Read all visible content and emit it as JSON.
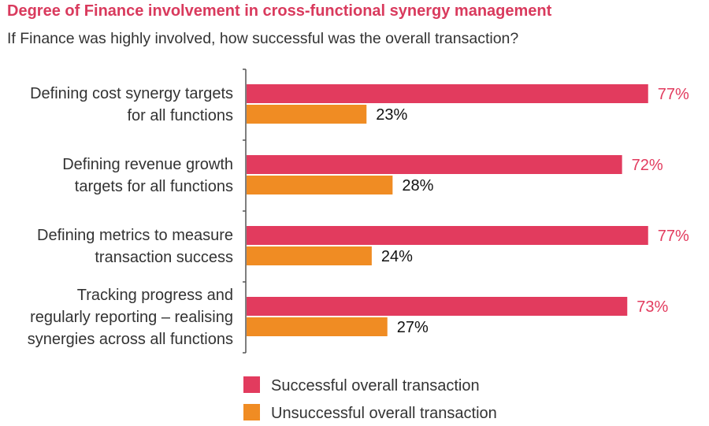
{
  "chart_data": {
    "type": "bar",
    "orientation": "horizontal",
    "title": "Degree of Finance involvement in cross-functional synergy management",
    "subtitle": "If Finance was highly involved, how successful was the overall transaction?",
    "categories": [
      [
        "Defining cost synergy targets",
        "for all functions"
      ],
      [
        "Defining revenue growth",
        "targets for all functions"
      ],
      [
        "Defining metrics to measure",
        "transaction success"
      ],
      [
        "Tracking progress and",
        "regularly reporting – realising",
        "synergies across all functions"
      ]
    ],
    "series": [
      {
        "name": "Successful overall transaction",
        "values": [
          77,
          72,
          77,
          73
        ],
        "labels": [
          "77%",
          "72%",
          "77%",
          "73%"
        ],
        "color": "#e23b5e",
        "label_color": "#e23b5e"
      },
      {
        "name": "Unsuccessful overall transaction",
        "values": [
          23,
          28,
          24,
          27
        ],
        "labels": [
          "23%",
          "28%",
          "24%",
          "27%"
        ],
        "color": "#f08c23",
        "label_color": "#111111"
      }
    ],
    "xlim": [
      0,
      100
    ],
    "grid": false,
    "legend_position": "bottom"
  }
}
